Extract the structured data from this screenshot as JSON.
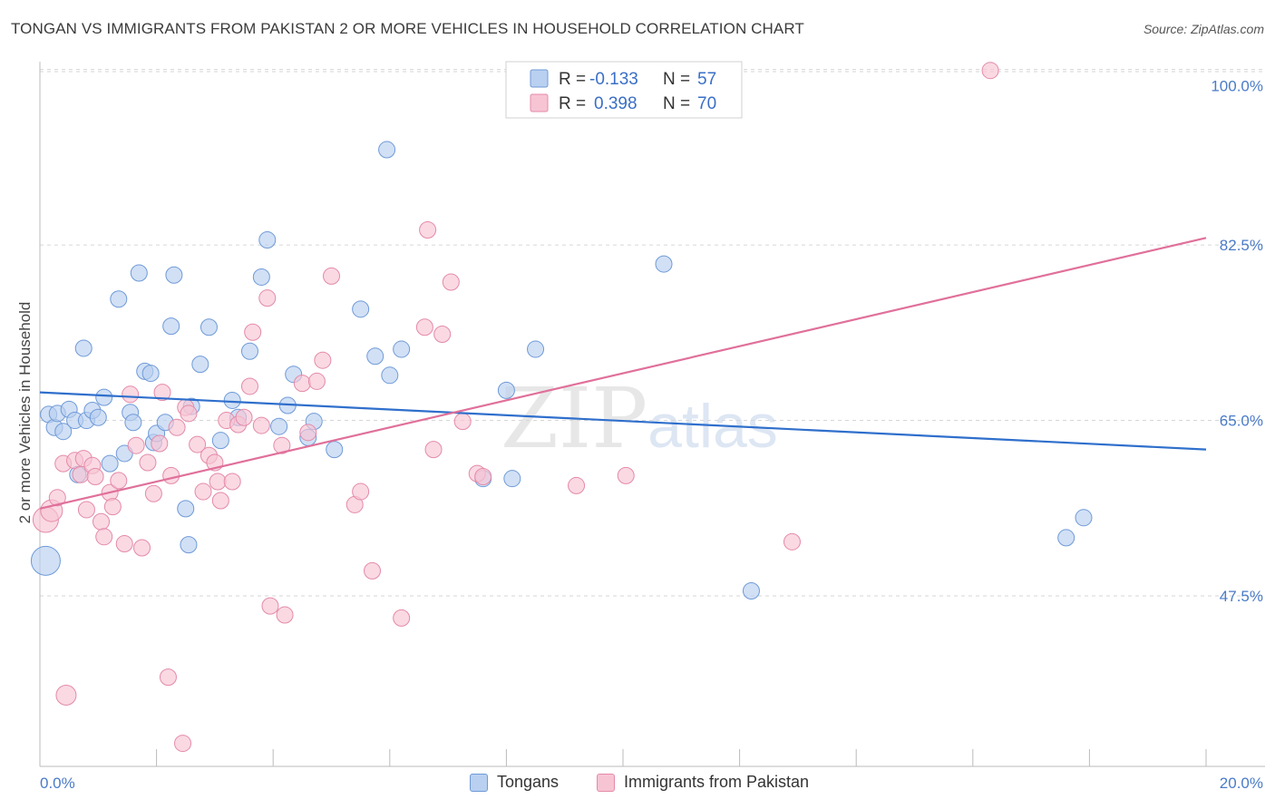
{
  "title": "TONGAN VS IMMIGRANTS FROM PAKISTAN 2 OR MORE VEHICLES IN HOUSEHOLD CORRELATION CHART",
  "source": "Source: ZipAtlas.com",
  "watermark": {
    "zip": "ZIP",
    "atlas": "atlas"
  },
  "legend_top": {
    "rows": [
      {
        "r_label": "R =",
        "r_value": "-0.133",
        "n_label": "N =",
        "n_value": "57"
      },
      {
        "r_label": "R =",
        "r_value": "0.398",
        "n_label": "N =",
        "n_value": "70"
      }
    ]
  },
  "legend_bottom": {
    "series1": "Tongans",
    "series2": "Immigrants from Pakistan"
  },
  "colors": {
    "blue_fill": "#b9d0f0",
    "blue_stroke": "#6f9ad8",
    "blue_line": "#2f6fcc",
    "pink_fill": "#f7c4d4",
    "pink_stroke": "#e48aa8",
    "pink_line": "#e0709a",
    "grid": "#d6d6d6",
    "axis_text": "#4a7bc8"
  },
  "chart_data": {
    "type": "scatter",
    "title": "TONGAN VS IMMIGRANTS FROM PAKISTAN 2 OR MORE VEHICLES IN HOUSEHOLD CORRELATION CHART",
    "xlabel": "",
    "ylabel": "2 or more Vehicles in Household",
    "xlim": [
      0,
      20
    ],
    "ylim": [
      30.5,
      101.5
    ],
    "x_tick_labels": [
      "0.0%",
      "20.0%"
    ],
    "y_ticks": [
      47.5,
      65.0,
      82.5,
      100.0
    ],
    "y_tick_labels": [
      "47.5%",
      "65.0%",
      "82.5%",
      "100.0%"
    ],
    "grid": true,
    "series": [
      {
        "name": "Tongans",
        "r": -0.133,
        "n": 57,
        "trend": {
          "x": [
            0,
            20
          ],
          "y": [
            67.8,
            62.1
          ]
        },
        "points": [
          [
            0.1,
            51.0,
            16
          ],
          [
            0.15,
            65.6,
            9
          ],
          [
            0.25,
            64.3,
            9
          ],
          [
            0.3,
            65.7,
            9
          ],
          [
            0.4,
            63.9,
            9
          ],
          [
            0.5,
            66.1,
            9
          ],
          [
            0.6,
            65.0,
            9
          ],
          [
            0.65,
            59.6,
            9
          ],
          [
            0.75,
            72.2,
            9
          ],
          [
            0.8,
            65.0,
            9
          ],
          [
            0.9,
            66.0,
            9
          ],
          [
            1.0,
            65.3,
            9
          ],
          [
            1.1,
            67.3,
            9
          ],
          [
            1.2,
            60.7,
            9
          ],
          [
            1.35,
            77.1,
            9
          ],
          [
            1.45,
            61.7,
            9
          ],
          [
            1.55,
            65.8,
            9
          ],
          [
            1.6,
            64.8,
            9
          ],
          [
            1.7,
            79.7,
            9
          ],
          [
            1.8,
            69.9,
            9
          ],
          [
            1.9,
            69.7,
            9
          ],
          [
            1.95,
            62.8,
            9
          ],
          [
            2.0,
            63.7,
            9
          ],
          [
            2.15,
            64.8,
            9
          ],
          [
            2.3,
            79.5,
            9
          ],
          [
            2.25,
            74.4,
            9
          ],
          [
            2.5,
            56.2,
            9
          ],
          [
            2.55,
            52.6,
            9
          ],
          [
            2.6,
            66.4,
            9
          ],
          [
            2.75,
            70.6,
            9
          ],
          [
            2.9,
            74.3,
            9
          ],
          [
            3.1,
            63.0,
            9
          ],
          [
            3.3,
            67.0,
            9
          ],
          [
            3.4,
            65.3,
            9
          ],
          [
            3.6,
            71.9,
            9
          ],
          [
            3.8,
            79.3,
            9
          ],
          [
            3.9,
            83.0,
            9
          ],
          [
            4.1,
            64.4,
            9
          ],
          [
            4.25,
            66.5,
            9
          ],
          [
            4.35,
            69.6,
            9
          ],
          [
            4.6,
            63.3,
            9
          ],
          [
            4.7,
            64.9,
            9
          ],
          [
            5.05,
            62.1,
            9
          ],
          [
            5.5,
            76.1,
            9
          ],
          [
            5.75,
            71.4,
            9
          ],
          [
            5.95,
            92.0,
            9
          ],
          [
            6.0,
            69.5,
            9
          ],
          [
            6.2,
            72.1,
            9
          ],
          [
            7.6,
            59.2,
            9
          ],
          [
            8.0,
            68.0,
            9
          ],
          [
            8.1,
            59.2,
            9
          ],
          [
            8.5,
            72.1,
            9
          ],
          [
            10.7,
            80.6,
            9
          ],
          [
            12.2,
            48.0,
            9
          ],
          [
            17.6,
            53.3,
            9
          ],
          [
            17.9,
            55.3,
            9
          ],
          [
            5.2,
            58.0,
            0
          ]
        ]
      },
      {
        "name": "Immigrants from Pakistan",
        "r": 0.398,
        "n": 70,
        "trend": {
          "x": [
            0,
            20
          ],
          "y": [
            56.2,
            83.2
          ]
        },
        "points": [
          [
            0.1,
            55.1,
            14
          ],
          [
            0.2,
            56.0,
            12
          ],
          [
            0.3,
            57.3,
            9
          ],
          [
            0.4,
            60.7,
            9
          ],
          [
            0.45,
            37.6,
            11
          ],
          [
            0.6,
            61.0,
            9
          ],
          [
            0.7,
            59.6,
            9
          ],
          [
            0.75,
            61.2,
            9
          ],
          [
            0.8,
            56.1,
            9
          ],
          [
            0.9,
            60.5,
            9
          ],
          [
            0.95,
            59.4,
            9
          ],
          [
            1.05,
            54.9,
            9
          ],
          [
            1.1,
            53.4,
            9
          ],
          [
            1.2,
            57.8,
            9
          ],
          [
            1.25,
            56.4,
            9
          ],
          [
            1.35,
            59.0,
            9
          ],
          [
            1.45,
            52.7,
            9
          ],
          [
            1.55,
            67.6,
            9
          ],
          [
            1.65,
            62.5,
            9
          ],
          [
            1.75,
            52.3,
            9
          ],
          [
            1.85,
            60.8,
            9
          ],
          [
            1.95,
            57.7,
            9
          ],
          [
            2.05,
            62.7,
            9
          ],
          [
            2.1,
            67.8,
            9
          ],
          [
            2.2,
            39.4,
            9
          ],
          [
            2.25,
            59.5,
            9
          ],
          [
            2.35,
            64.3,
            9
          ],
          [
            2.45,
            32.8,
            9
          ],
          [
            2.5,
            66.3,
            9
          ],
          [
            2.55,
            65.7,
            9
          ],
          [
            2.7,
            62.6,
            9
          ],
          [
            2.8,
            57.9,
            9
          ],
          [
            2.9,
            61.5,
            9
          ],
          [
            3.0,
            60.8,
            9
          ],
          [
            3.05,
            58.9,
            9
          ],
          [
            3.1,
            57.0,
            9
          ],
          [
            3.2,
            65.0,
            9
          ],
          [
            3.3,
            58.9,
            9
          ],
          [
            3.4,
            64.6,
            9
          ],
          [
            3.5,
            65.3,
            9
          ],
          [
            3.6,
            68.4,
            9
          ],
          [
            3.65,
            73.8,
            9
          ],
          [
            3.8,
            64.5,
            9
          ],
          [
            3.9,
            77.2,
            9
          ],
          [
            3.95,
            46.5,
            9
          ],
          [
            4.15,
            62.5,
            9
          ],
          [
            4.2,
            45.6,
            9
          ],
          [
            4.5,
            68.7,
            9
          ],
          [
            4.6,
            63.8,
            9
          ],
          [
            4.75,
            68.9,
            9
          ],
          [
            4.85,
            71.0,
            9
          ],
          [
            5.0,
            79.4,
            9
          ],
          [
            5.4,
            56.6,
            9
          ],
          [
            5.5,
            57.9,
            9
          ],
          [
            5.7,
            50.0,
            9
          ],
          [
            6.2,
            45.3,
            9
          ],
          [
            6.6,
            74.3,
            9
          ],
          [
            6.65,
            84.0,
            9
          ],
          [
            6.75,
            62.1,
            9
          ],
          [
            6.9,
            73.6,
            9
          ],
          [
            7.05,
            78.8,
            9
          ],
          [
            7.25,
            64.9,
            9
          ],
          [
            7.5,
            59.7,
            9
          ],
          [
            7.6,
            59.4,
            9
          ],
          [
            9.2,
            58.5,
            9
          ],
          [
            10.05,
            59.5,
            9
          ],
          [
            12.9,
            52.9,
            9
          ],
          [
            16.3,
            99.9,
            9
          ],
          [
            1.5,
            54.0,
            0
          ],
          [
            3.0,
            50.0,
            0
          ]
        ]
      }
    ]
  }
}
